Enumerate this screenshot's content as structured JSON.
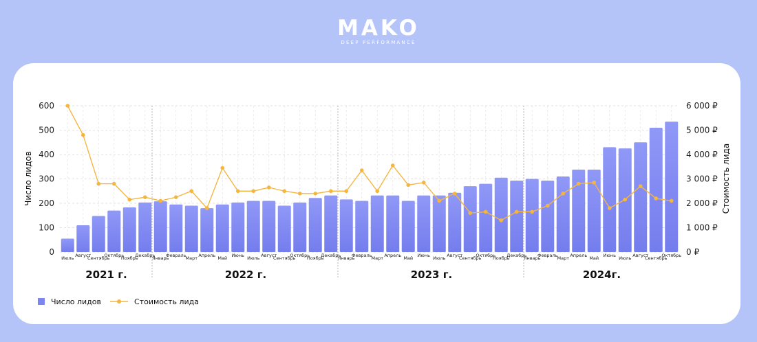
{
  "brand": {
    "name": "MAKO",
    "tagline": "DEEP PERFORMANCE"
  },
  "colors": {
    "bar": "#7d86ef",
    "bar_top": "#8f98f6",
    "line": "#f5b640",
    "background": "#b4c3f8"
  },
  "chart_data": {
    "type": "bar",
    "categories": [
      "Июль",
      "Август",
      "Сентябрь",
      "Октябрь",
      "Ноябрь",
      "Декабрь",
      "Январь",
      "Февраль",
      "Март",
      "Апрель",
      "Май",
      "Июнь",
      "Июль",
      "Август",
      "Сентябрь",
      "Октябрь",
      "Ноябрь",
      "Декабрь",
      "Январь",
      "Февраль",
      "Март",
      "Апрель",
      "Май",
      "Июнь",
      "Июль",
      "Август",
      "Сентябрь",
      "Октябрь",
      "Ноябрь",
      "Декабрь",
      "Январь",
      "Февраль",
      "Март",
      "Апрель",
      "Май",
      "Июнь",
      "Июль",
      "Август",
      "Сентябрь",
      "Октябрь"
    ],
    "groups": [
      {
        "label": "2021 г.",
        "count": 6
      },
      {
        "label": "2022 г.",
        "count": 12
      },
      {
        "label": "2023 г.",
        "count": 12
      },
      {
        "label": "2024г.",
        "count": 10
      }
    ],
    "series": [
      {
        "name": "Число лидов",
        "type": "bar",
        "axis": "left",
        "values": [
          55,
          110,
          148,
          170,
          183,
          203,
          208,
          195,
          190,
          180,
          195,
          203,
          210,
          210,
          190,
          203,
          222,
          232,
          216,
          210,
          232,
          232,
          210,
          232,
          232,
          243,
          270,
          280,
          305,
          293,
          300,
          293,
          310,
          338,
          338,
          430,
          425,
          450,
          510,
          535
        ]
      },
      {
        "name": "Стоимость лида",
        "type": "line",
        "axis": "right",
        "values": [
          6000,
          4800,
          2800,
          2800,
          2150,
          2250,
          2100,
          2250,
          2500,
          1800,
          3450,
          2500,
          2500,
          2650,
          2500,
          2400,
          2400,
          2500,
          2500,
          3350,
          2500,
          3550,
          2750,
          2850,
          2100,
          2400,
          1600,
          1650,
          1300,
          1650,
          1650,
          1900,
          2400,
          2800,
          2850,
          1800,
          2150,
          2700,
          2200,
          2100
        ]
      }
    ],
    "ylabel": "Число лидов",
    "y2label": "Стоимость лида",
    "ylim": [
      0,
      600
    ],
    "yticks": [
      "0",
      "100",
      "200",
      "300",
      "400",
      "500",
      "600"
    ],
    "y2lim": [
      0,
      6000
    ],
    "y2ticks": [
      "0 ₽",
      "1 000 ₽",
      "2 000 ₽",
      "3 000 ₽",
      "4 000 ₽",
      "5 000 ₽",
      "6 000 ₽"
    ],
    "grid": true,
    "legend_position": "bottom-left",
    "legend": [
      "Число лидов",
      "Стоимость лида"
    ]
  }
}
